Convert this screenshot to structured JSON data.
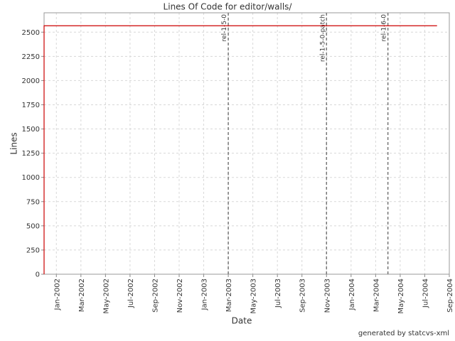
{
  "chart_data": {
    "type": "line",
    "title": "Lines Of Code for editor/walls/",
    "x_label": "Date",
    "y_label": "Lines",
    "footer": "generated by statcvs-xml",
    "x": [
      "2001-12",
      "2001-12",
      "2004-08"
    ],
    "values": [
      0,
      2566,
      2566
    ],
    "color": "#cc0000",
    "xlim": [
      "2001-12",
      "2004-09"
    ],
    "xticks": [
      {
        "value": "2002-01",
        "label": "Jan-2002"
      },
      {
        "value": "2002-03",
        "label": "Mar-2002"
      },
      {
        "value": "2002-05",
        "label": "May-2002"
      },
      {
        "value": "2002-07",
        "label": "Jul-2002"
      },
      {
        "value": "2002-09",
        "label": "Sep-2002"
      },
      {
        "value": "2002-11",
        "label": "Nov-2002"
      },
      {
        "value": "2003-01",
        "label": "Jan-2003"
      },
      {
        "value": "2003-03",
        "label": "Mar-2003"
      },
      {
        "value": "2003-05",
        "label": "May-2003"
      },
      {
        "value": "2003-07",
        "label": "Jul-2003"
      },
      {
        "value": "2003-09",
        "label": "Sep-2003"
      },
      {
        "value": "2003-11",
        "label": "Nov-2003"
      },
      {
        "value": "2004-01",
        "label": "Jan-2004"
      },
      {
        "value": "2004-03",
        "label": "Mar-2004"
      },
      {
        "value": "2004-05",
        "label": "May-2004"
      },
      {
        "value": "2004-07",
        "label": "Jul-2004"
      },
      {
        "value": "2004-09",
        "label": "Sep-2004"
      }
    ],
    "ylim": [
      0,
      2700
    ],
    "yticks": [
      0,
      250,
      500,
      750,
      1000,
      1250,
      1500,
      1750,
      2000,
      2250,
      2500
    ],
    "grid": true,
    "markers": [
      {
        "x": "2003-03",
        "label": "rel-1-5-0"
      },
      {
        "x": "2003-11",
        "label": "rel-1-5-0-patch"
      },
      {
        "x": "2004-04",
        "label": "rel-1-6-0"
      }
    ]
  }
}
